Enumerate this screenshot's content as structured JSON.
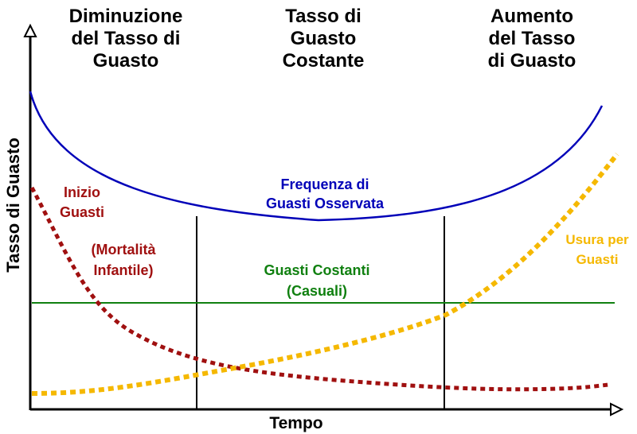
{
  "headers": {
    "left": [
      "Diminuzione",
      "del Tasso di",
      "Guasto"
    ],
    "middle": [
      "Tasso di",
      "Guasto",
      "Costante"
    ],
    "right": [
      "Aumento",
      "del Tasso",
      "di Guasto"
    ]
  },
  "axes": {
    "ylabel": "Tasso di Guasto",
    "xlabel": "Tempo"
  },
  "curves": {
    "observed": {
      "label": [
        "Frequenza di",
        "Guasti Osservata"
      ],
      "color": "#0000b8"
    },
    "infant": {
      "label": [
        "Inizio",
        "Guasti"
      ],
      "sublabel": [
        "(Mortalità",
        "Infantile)"
      ],
      "color": "#a01010"
    },
    "constant": {
      "label": [
        "Guasti Costanti",
        "(Casuali)"
      ],
      "color": "#108010"
    },
    "wearout": {
      "label": [
        "Usura per",
        "Guasti"
      ],
      "color": "#f5b800"
    }
  }
}
